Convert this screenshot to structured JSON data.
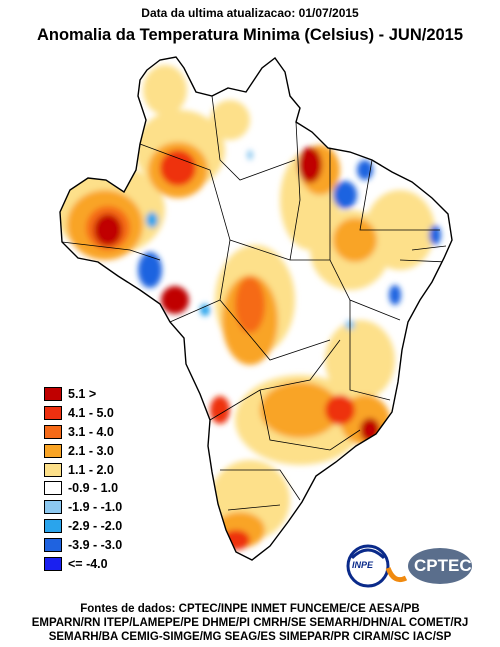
{
  "header": {
    "update_text": "Data da ultima atualizacao: 01/07/2015",
    "title": "Anomalia da Temperatura Minima (Celsius) - JUN/2015"
  },
  "legend": {
    "items": [
      {
        "label": "5.1 >",
        "color": "#c00000"
      },
      {
        "label": "4.1 - 5.0",
        "color": "#ee3010"
      },
      {
        "label": "3.1 - 4.0",
        "color": "#f56a18"
      },
      {
        "label": "2.1 - 3.0",
        "color": "#f9a425"
      },
      {
        "label": "1.1 - 2.0",
        "color": "#fde08a"
      },
      {
        "label": "-0.9 - 1.0",
        "color": "#ffffff"
      },
      {
        "label": "-1.9 - -1.0",
        "color": "#8cc8f0"
      },
      {
        "label": "-2.9 - -2.0",
        "color": "#2aa4ec"
      },
      {
        "label": "-3.9 - -3.0",
        "color": "#1f63e0"
      },
      {
        "label": "<= -4.0",
        "color": "#1a20f0"
      }
    ]
  },
  "logos": {
    "inpe": "INPE",
    "cptec": "CPTEC"
  },
  "footer": {
    "line1": "Fontes de dados: CPTEC/INPE INMET FUNCEME/CE AESA/PB",
    "line2": "EMPARN/RN ITEP/LAMEPE/PE DHME/PI CMRH/SE SEMARH/DHN/AL COMET/RJ",
    "line3": "SEMARH/BA CEMIG-SIMGE/MG SEAG/ES SIMEPAR/PR CIRAM/SC IAC/SP"
  }
}
